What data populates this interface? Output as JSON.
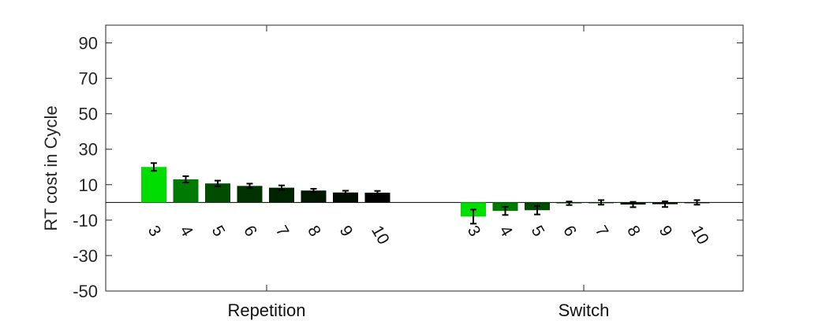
{
  "chart_data": {
    "type": "bar",
    "title": "",
    "xlabel": "",
    "ylabel": "RT cost in Cycle",
    "ylim": [
      -50,
      100
    ],
    "yticks": [
      90,
      70,
      50,
      30,
      10,
      -10,
      -30,
      -50
    ],
    "grid": false,
    "legend": "none",
    "groups": [
      {
        "label": "Repetition",
        "categories": [
          "3",
          "4",
          "5",
          "6",
          "7",
          "8",
          "9",
          "10"
        ],
        "values": [
          20.0,
          13.0,
          10.7,
          9.3,
          8.3,
          6.7,
          5.6,
          5.5
        ],
        "errors": [
          2.2,
          1.8,
          1.6,
          1.3,
          1.3,
          1.0,
          1.0,
          1.0
        ],
        "colors": [
          "#00dd00",
          "#007a00",
          "#004c00",
          "#003300",
          "#002400",
          "#001800",
          "#000d00",
          "#000000"
        ]
      },
      {
        "label": "Switch",
        "categories": [
          "3",
          "4",
          "5",
          "6",
          "7",
          "8",
          "9",
          "10"
        ],
        "values": [
          -8.0,
          -4.8,
          -4.4,
          -0.5,
          0.0,
          -1.2,
          -1.0,
          0.0
        ],
        "errors": [
          4.0,
          2.3,
          2.4,
          1.0,
          1.3,
          1.5,
          1.6,
          1.3
        ],
        "colors": [
          "#00dd00",
          "#007a00",
          "#004c00",
          "#003300",
          "#002400",
          "#001800",
          "#000d00",
          "#000000"
        ]
      }
    ]
  }
}
